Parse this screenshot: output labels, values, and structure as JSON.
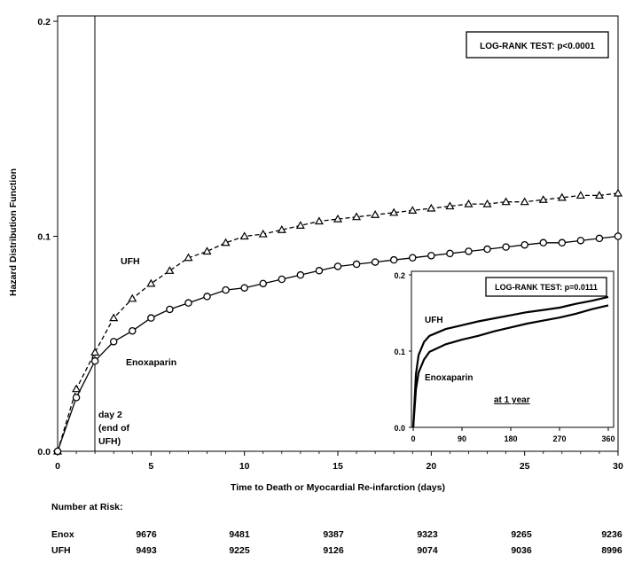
{
  "chart_data": [
    {
      "type": "line",
      "xlabel": "Time to Death or Myocardial Re-infarction (days)",
      "ylabel": "Hazard Distribution Function",
      "xlim": [
        0,
        30
      ],
      "ylim": [
        0,
        0.2
      ],
      "x_ticks": [
        "0",
        "5",
        "10",
        "15",
        "20",
        "25",
        "30"
      ],
      "y_ticks": [
        "0.0",
        "0.1",
        "0.2"
      ],
      "grid": false,
      "x": [
        0,
        1,
        2,
        3,
        4,
        5,
        6,
        7,
        8,
        9,
        10,
        11,
        12,
        13,
        14,
        15,
        16,
        17,
        18,
        19,
        20,
        21,
        22,
        23,
        24,
        25,
        26,
        27,
        28,
        29,
        30
      ],
      "series": [
        {
          "name": "UFH",
          "style": "dashed",
          "marker": "triangle",
          "values": [
            0.0,
            0.029,
            0.046,
            0.062,
            0.071,
            0.078,
            0.084,
            0.09,
            0.093,
            0.097,
            0.1,
            0.101,
            0.103,
            0.105,
            0.107,
            0.108,
            0.109,
            0.11,
            0.111,
            0.112,
            0.113,
            0.114,
            0.115,
            0.115,
            0.116,
            0.116,
            0.117,
            0.118,
            0.119,
            0.119,
            0.12
          ]
        },
        {
          "name": "Enoxaparin",
          "style": "solid",
          "marker": "circle",
          "values": [
            0.0,
            0.025,
            0.042,
            0.051,
            0.056,
            0.062,
            0.066,
            0.069,
            0.072,
            0.075,
            0.076,
            0.078,
            0.08,
            0.082,
            0.084,
            0.086,
            0.087,
            0.088,
            0.089,
            0.09,
            0.091,
            0.092,
            0.093,
            0.094,
            0.095,
            0.096,
            0.097,
            0.097,
            0.098,
            0.099,
            0.1
          ]
        }
      ],
      "legend_box": "LOG-RANK TEST: p<0.0001",
      "annotation_day2": [
        "day 2",
        "(end of",
        "UFH)"
      ],
      "day2_line_x": 2
    },
    {
      "type": "line",
      "inset": true,
      "xlim": [
        0,
        360
      ],
      "ylim": [
        0,
        0.2
      ],
      "x_ticks": [
        "0",
        "90",
        "180",
        "270",
        "360"
      ],
      "y_ticks": [
        "0.0",
        "0.1",
        "0.2"
      ],
      "x": [
        0,
        5,
        10,
        20,
        30,
        60,
        90,
        120,
        150,
        180,
        210,
        240,
        270,
        300,
        330,
        360
      ],
      "series": [
        {
          "name": "UFH",
          "values": [
            0.0,
            0.07,
            0.095,
            0.112,
            0.12,
            0.129,
            0.134,
            0.139,
            0.143,
            0.147,
            0.151,
            0.154,
            0.157,
            0.162,
            0.166,
            0.171
          ]
        },
        {
          "name": "Enoxaparin",
          "values": [
            0.0,
            0.05,
            0.072,
            0.089,
            0.099,
            0.109,
            0.115,
            0.12,
            0.126,
            0.131,
            0.136,
            0.14,
            0.144,
            0.149,
            0.155,
            0.16
          ]
        }
      ],
      "legend_box": "LOG-RANK TEST: p=0.0111",
      "caption": "at 1 year"
    }
  ],
  "risk_table": {
    "title": "Number at Risk:",
    "rows": [
      {
        "label": "Enox",
        "values": [
          "9676",
          "9481",
          "9387",
          "9323",
          "9265",
          "9236"
        ]
      },
      {
        "label": "UFH",
        "values": [
          "9493",
          "9225",
          "9126",
          "9074",
          "9036",
          "8996"
        ]
      }
    ]
  }
}
